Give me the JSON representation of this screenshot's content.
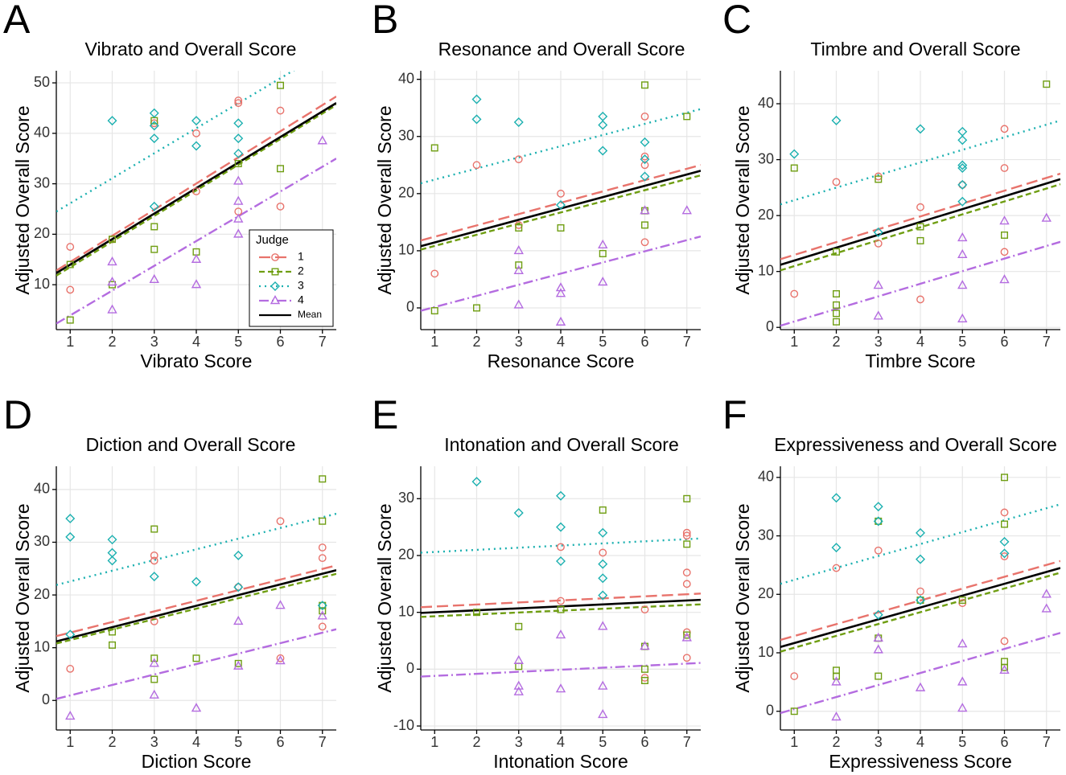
{
  "chart_data": [
    {
      "type": "scatter",
      "panel": "A",
      "title": "Vibrato and Overall Score",
      "x_label": "Vibrato Score",
      "y_label": "Adjusted Overall Score",
      "xlim": [
        0.67,
        7.33
      ],
      "ylim": [
        1.1,
        52.4
      ],
      "xticks": [
        1,
        2,
        3,
        4,
        5,
        6,
        7
      ],
      "yticks": [
        10,
        20,
        30,
        40,
        50
      ],
      "grid": true,
      "legend": {
        "title": "Judge",
        "corner": "bottom-right",
        "entries": [
          {
            "name": "1",
            "color": "#e8736c",
            "marker": "circle",
            "dash": "14,6"
          },
          {
            "name": "2",
            "color": "#6f9e12",
            "marker": "square",
            "dash": "7,4"
          },
          {
            "name": "3",
            "color": "#1bb0b0",
            "marker": "diamond",
            "dash": "2,5"
          },
          {
            "name": "4",
            "color": "#b46ce0",
            "marker": "triangle",
            "dash": "12,4,2,4"
          },
          {
            "name": "Mean",
            "color": "#000000",
            "marker": "none",
            "dash": "none"
          }
        ]
      },
      "series": [
        {
          "x": [
            1,
            1,
            2,
            3,
            4,
            4,
            5,
            5,
            5,
            6,
            6
          ],
          "y": [
            17.5,
            9,
            19,
            42,
            40,
            28.5,
            46.5,
            46,
            24.5,
            44.5,
            25.5
          ],
          "fit": [
            12.8,
            47.3
          ]
        },
        {
          "x": [
            1,
            1,
            2,
            2,
            3,
            3,
            3,
            4,
            5,
            6,
            6
          ],
          "y": [
            3,
            14,
            10,
            19,
            42.5,
            21.5,
            17,
            16.5,
            34,
            49.5,
            33
          ],
          "fit": [
            11.8,
            45.6
          ]
        },
        {
          "x": [
            2,
            3,
            3,
            3,
            3,
            4,
            4,
            5,
            5,
            5
          ],
          "y": [
            42.5,
            44,
            41.5,
            39,
            25.5,
            42.5,
            37.5,
            42,
            39,
            36
          ],
          "fit": [
            24.5,
            57.5
          ]
        },
        {
          "x": [
            2,
            2,
            2,
            3,
            4,
            4,
            5,
            5,
            5,
            5,
            7
          ],
          "y": [
            14.5,
            10.5,
            5,
            11,
            15,
            10,
            30.5,
            26.5,
            23,
            20,
            38.5
          ],
          "fit": [
            2.3,
            35
          ]
        }
      ],
      "mean_fit": [
        12.3,
        46
      ]
    },
    {
      "type": "scatter",
      "panel": "B",
      "title": "Resonance and Overall Score",
      "x_label": "Resonance Score",
      "y_label": "Adjusted Overall Score",
      "xlim": [
        0.67,
        7.33
      ],
      "ylim": [
        -3.8,
        41.5
      ],
      "xticks": [
        1,
        2,
        3,
        4,
        5,
        6,
        7
      ],
      "yticks": [
        0,
        10,
        20,
        30,
        40
      ],
      "grid": true,
      "series": [
        {
          "x": [
            1,
            2,
            3,
            3,
            4,
            6,
            6,
            6,
            6
          ],
          "y": [
            6,
            25,
            26,
            14.5,
            20,
            33.5,
            26.5,
            25,
            11.5
          ],
          "fit": [
            11.8,
            25
          ]
        },
        {
          "x": [
            1,
            1,
            2,
            3,
            3,
            4,
            5,
            6,
            6,
            6,
            7
          ],
          "y": [
            28,
            -0.5,
            0,
            7.5,
            14,
            14,
            9.5,
            39,
            17,
            14.5,
            33.5
          ],
          "fit": [
            10.2,
            23.2
          ]
        },
        {
          "x": [
            2,
            2,
            3,
            4,
            5,
            5,
            5,
            6,
            6,
            6
          ],
          "y": [
            36.5,
            33,
            32.5,
            18,
            33.5,
            32,
            27.5,
            29,
            26,
            23
          ],
          "fit": [
            21.8,
            34.8
          ]
        },
        {
          "x": [
            3,
            3,
            3,
            4,
            4,
            4,
            5,
            5,
            6,
            7
          ],
          "y": [
            10,
            6.5,
            0.5,
            3.5,
            2.5,
            -2.5,
            11,
            4.5,
            17,
            17
          ],
          "fit": [
            -0.5,
            12.5
          ]
        }
      ],
      "mean_fit": [
        10.8,
        24
      ]
    },
    {
      "type": "scatter",
      "panel": "C",
      "title": "Timbre and Overall Score",
      "x_label": "Timbre Score",
      "y_label": "Adjusted Overall Score",
      "xlim": [
        0.67,
        7.33
      ],
      "ylim": [
        -0.4,
        45.9
      ],
      "xticks": [
        1,
        2,
        3,
        4,
        5,
        6,
        7
      ],
      "yticks": [
        0,
        10,
        20,
        30,
        40
      ],
      "grid": true,
      "series": [
        {
          "x": [
            1,
            2,
            3,
            3,
            4,
            4,
            5,
            6,
            6,
            6
          ],
          "y": [
            6,
            26,
            27,
            15,
            21.5,
            5,
            25.5,
            35.5,
            28.5,
            13.5
          ],
          "fit": [
            12.2,
            27.5
          ]
        },
        {
          "x": [
            1,
            2,
            2,
            2,
            2,
            2,
            3,
            4,
            4,
            6,
            7
          ],
          "y": [
            28.5,
            13.5,
            6,
            4,
            2.5,
            1,
            26.5,
            18,
            15.5,
            16.5,
            43.5
          ],
          "fit": [
            10.2,
            25.6
          ]
        },
        {
          "x": [
            1,
            2,
            3,
            4,
            5,
            5,
            5,
            5,
            5,
            5
          ],
          "y": [
            31,
            37,
            17,
            35.5,
            35,
            33.5,
            29,
            28.5,
            25.5,
            22.5
          ],
          "fit": [
            22,
            37
          ]
        },
        {
          "x": [
            3,
            3,
            5,
            5,
            5,
            5,
            6,
            6,
            7
          ],
          "y": [
            7.5,
            2,
            16,
            13,
            7.5,
            1.5,
            19,
            8.5,
            19.5
          ],
          "fit": [
            0.3,
            15.3
          ]
        }
      ],
      "mean_fit": [
        11.2,
        26.5
      ]
    },
    {
      "type": "scatter",
      "panel": "D",
      "title": "Diction and Overall Score",
      "x_label": "Diction Score",
      "y_label": "Adjusted Overall Score",
      "xlim": [
        0.67,
        7.33
      ],
      "ylim": [
        -5.6,
        44.4
      ],
      "xticks": [
        1,
        2,
        3,
        4,
        5,
        6,
        7
      ],
      "yticks": [
        0,
        10,
        20,
        30,
        40
      ],
      "grid": true,
      "series": [
        {
          "x": [
            1,
            3,
            3,
            3,
            5,
            6,
            6,
            7,
            7,
            7
          ],
          "y": [
            6,
            27.5,
            26.5,
            15,
            21.5,
            34,
            8,
            29,
            27,
            14
          ],
          "fit": [
            12.2,
            25.6
          ]
        },
        {
          "x": [
            2,
            2,
            3,
            3,
            3,
            4,
            5,
            7,
            7,
            7,
            7
          ],
          "y": [
            13,
            10.5,
            32.5,
            8,
            4,
            8,
            7,
            42,
            34,
            18,
            17
          ],
          "fit": [
            10.8,
            24
          ]
        },
        {
          "x": [
            1,
            1,
            1,
            2,
            2,
            2,
            3,
            4,
            5,
            5,
            7
          ],
          "y": [
            34.5,
            31,
            12.5,
            30.5,
            28,
            26.5,
            23.5,
            22.5,
            27.5,
            21.5,
            18
          ],
          "fit": [
            21.9,
            35.4
          ]
        },
        {
          "x": [
            1,
            3,
            3,
            4,
            5,
            5,
            6,
            6,
            7
          ],
          "y": [
            -3,
            7,
            1,
            -1.5,
            15,
            6.5,
            18,
            7.5,
            16
          ],
          "fit": [
            0.3,
            13.5
          ]
        }
      ],
      "mean_fit": [
        11.2,
        24.7
      ]
    },
    {
      "type": "scatter",
      "panel": "E",
      "title": "Intonation and Overall Score",
      "x_label": "Intonation Score",
      "y_label": "Adjusted Overall Score",
      "xlim": [
        0.67,
        7.33
      ],
      "ylim": [
        -10.7,
        35.7
      ],
      "xticks": [
        1,
        2,
        3,
        4,
        5,
        6,
        7
      ],
      "yticks": [
        -10,
        0,
        10,
        20,
        30
      ],
      "grid": true,
      "series": [
        {
          "x": [
            4,
            4,
            5,
            6,
            6,
            7,
            7,
            7,
            7,
            7,
            7
          ],
          "y": [
            21.5,
            12,
            20.5,
            10.5,
            -1.5,
            24,
            23.5,
            17,
            15,
            6.5,
            2
          ],
          "fit": [
            10.9,
            13.3
          ]
        },
        {
          "x": [
            2,
            3,
            3,
            4,
            5,
            6,
            6,
            6,
            7,
            7,
            7
          ],
          "y": [
            10,
            7.5,
            0.5,
            10.5,
            28,
            4,
            0,
            -2,
            30,
            22,
            6
          ],
          "fit": [
            9.2,
            11.4
          ]
        },
        {
          "x": [
            2,
            3,
            4,
            4,
            4,
            5,
            5,
            5,
            5
          ],
          "y": [
            33,
            27.5,
            30.5,
            25,
            19,
            24,
            18.5,
            16,
            13
          ],
          "fit": [
            20.5,
            23
          ]
        },
        {
          "x": [
            3,
            3,
            3,
            4,
            4,
            5,
            5,
            5,
            6,
            7
          ],
          "y": [
            1.5,
            -3,
            -4,
            6,
            -3.5,
            7.5,
            -3,
            -8,
            4,
            5.5
          ],
          "fit": [
            -1.3,
            1.1
          ]
        }
      ],
      "mean_fit": [
        9.9,
        12.2
      ]
    },
    {
      "type": "scatter",
      "panel": "F",
      "title": "Expressiveness and Overall Score",
      "x_label": "Expressiveness Score",
      "y_label": "Adjusted Overall Score",
      "xlim": [
        0.67,
        7.33
      ],
      "ylim": [
        -3.2,
        41.9
      ],
      "xticks": [
        1,
        2,
        3,
        4,
        5,
        6,
        7
      ],
      "yticks": [
        0,
        10,
        20,
        30,
        40
      ],
      "grid": true,
      "series": [
        {
          "x": [
            1,
            2,
            3,
            4,
            5,
            6,
            6,
            6
          ],
          "y": [
            6,
            24.5,
            27.5,
            20.5,
            18.5,
            34,
            26.5,
            12
          ],
          "fit": [
            12.2,
            25.7
          ]
        },
        {
          "x": [
            1,
            2,
            2,
            3,
            3,
            3,
            4,
            5,
            6,
            6,
            6,
            6
          ],
          "y": [
            0,
            7,
            6,
            32.5,
            12.5,
            6,
            19,
            19,
            40,
            32,
            8.5,
            7.5
          ],
          "fit": [
            10.2,
            23.7
          ]
        },
        {
          "x": [
            2,
            2,
            3,
            3,
            3,
            4,
            4,
            4,
            6,
            6
          ],
          "y": [
            36.5,
            28,
            35,
            32.5,
            16.5,
            30.5,
            26,
            19,
            29,
            27
          ],
          "fit": [
            21.8,
            35.4
          ]
        },
        {
          "x": [
            2,
            2,
            3,
            3,
            4,
            5,
            5,
            5,
            6,
            7,
            7
          ],
          "y": [
            5,
            -1,
            10.5,
            12.5,
            4,
            11.5,
            5,
            0.5,
            7,
            20,
            17.5
          ],
          "fit": [
            -0.3,
            13.4
          ]
        }
      ],
      "mean_fit": [
        11,
        24.5
      ]
    }
  ]
}
